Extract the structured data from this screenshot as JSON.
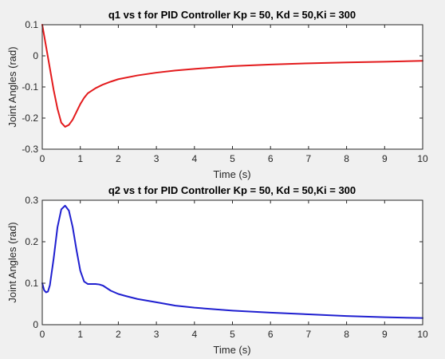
{
  "chart_data": [
    {
      "type": "line",
      "title": "q1 vs t for PID Controller Kp = 50, Kd = 50,Ki = 300",
      "xlabel": "Time (s)",
      "ylabel": "Joint Angles (rad)",
      "xlim": [
        0,
        10
      ],
      "ylim": [
        -0.3,
        0.1
      ],
      "xticks": [
        0,
        1,
        2,
        3,
        4,
        5,
        6,
        7,
        8,
        9,
        10
      ],
      "yticks": [
        -0.3,
        -0.2,
        -0.1,
        0,
        0.1
      ],
      "xtick_labels": [
        "0",
        "1",
        "2",
        "3",
        "4",
        "5",
        "6",
        "7",
        "8",
        "9",
        "10"
      ],
      "ytick_labels": [
        "-0.3",
        "-0.2",
        "-0.1",
        "0",
        "0.1"
      ],
      "grid": false,
      "series": [
        {
          "color": "#e31a1c",
          "x": [
            0,
            0.1,
            0.2,
            0.3,
            0.4,
            0.5,
            0.6,
            0.7,
            0.8,
            0.9,
            1.0,
            1.1,
            1.2,
            1.4,
            1.6,
            1.8,
            2.0,
            2.5,
            3.0,
            3.5,
            4.0,
            5.0,
            6.0,
            7.0,
            8.0,
            9.0,
            10.0
          ],
          "y": [
            0.1,
            0.03,
            -0.04,
            -0.11,
            -0.17,
            -0.215,
            -0.228,
            -0.222,
            -0.205,
            -0.18,
            -0.155,
            -0.135,
            -0.12,
            -0.104,
            -0.092,
            -0.083,
            -0.075,
            -0.063,
            -0.054,
            -0.047,
            -0.042,
            -0.033,
            -0.028,
            -0.024,
            -0.021,
            -0.019,
            -0.016
          ]
        }
      ]
    },
    {
      "type": "line",
      "title": "q2 vs t for PID Controller Kp = 50, Kd = 50,Ki = 300",
      "xlabel": "Time (s)",
      "ylabel": "Joint Angles (rad)",
      "xlim": [
        0,
        10
      ],
      "ylim": [
        0,
        0.3
      ],
      "xticks": [
        0,
        1,
        2,
        3,
        4,
        5,
        6,
        7,
        8,
        9,
        10
      ],
      "yticks": [
        0,
        0.1,
        0.2,
        0.3
      ],
      "xtick_labels": [
        "0",
        "1",
        "2",
        "3",
        "4",
        "5",
        "6",
        "7",
        "8",
        "9",
        "10"
      ],
      "ytick_labels": [
        "0",
        "0.1",
        "0.2",
        "0.3"
      ],
      "grid": false,
      "series": [
        {
          "color": "#1f1fd0",
          "x": [
            0,
            0.05,
            0.1,
            0.15,
            0.2,
            0.3,
            0.4,
            0.5,
            0.6,
            0.7,
            0.8,
            0.9,
            1.0,
            1.1,
            1.2,
            1.3,
            1.4,
            1.5,
            1.6,
            1.7,
            1.8,
            2.0,
            2.2,
            2.5,
            3.0,
            3.5,
            4.0,
            5.0,
            6.0,
            7.0,
            8.0,
            9.0,
            10.0
          ],
          "y": [
            0.1,
            0.083,
            0.078,
            0.08,
            0.095,
            0.16,
            0.235,
            0.278,
            0.287,
            0.275,
            0.235,
            0.18,
            0.13,
            0.104,
            0.098,
            0.098,
            0.098,
            0.097,
            0.094,
            0.088,
            0.082,
            0.074,
            0.069,
            0.062,
            0.054,
            0.046,
            0.041,
            0.034,
            0.029,
            0.025,
            0.021,
            0.018,
            0.016
          ]
        }
      ]
    }
  ]
}
